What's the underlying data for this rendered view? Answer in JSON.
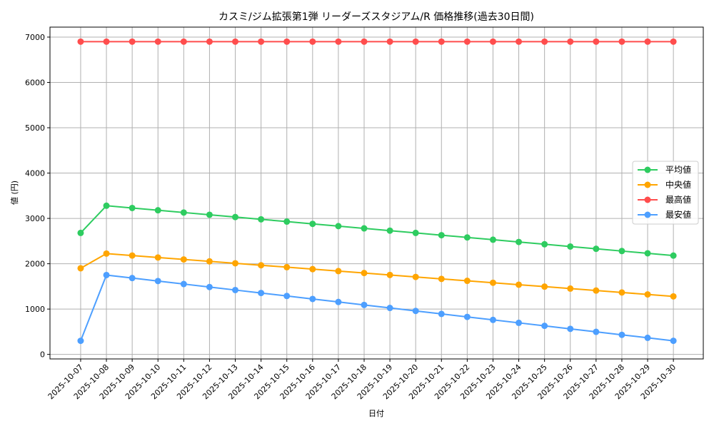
{
  "chart_data": {
    "type": "line",
    "title": "カスミ/ジム拡張第1弾 リーダーズスタジアム/R 価格推移(過去30日間)",
    "xlabel": "日付",
    "ylabel": "値 (円)",
    "ylim": [
      -100,
      7220
    ],
    "yticks": [
      0,
      1000,
      2000,
      3000,
      4000,
      5000,
      6000,
      7000
    ],
    "grid": true,
    "legend_position": "center-right",
    "x": [
      "2025-10-07",
      "2025-10-08",
      "2025-10-09",
      "2025-10-10",
      "2025-10-11",
      "2025-10-12",
      "2025-10-13",
      "2025-10-14",
      "2025-10-15",
      "2025-10-16",
      "2025-10-17",
      "2025-10-18",
      "2025-10-19",
      "2025-10-20",
      "2025-10-21",
      "2025-10-22",
      "2025-10-23",
      "2025-10-24",
      "2025-10-25",
      "2025-10-26",
      "2025-10-27",
      "2025-10-28",
      "2025-10-29",
      "2025-10-30"
    ],
    "series": [
      {
        "name": "平均値",
        "color": "#2ecc60",
        "values": [
          2680,
          3280,
          3230,
          3180,
          3130,
          3080,
          3030,
          2980,
          2930,
          2880,
          2830,
          2780,
          2730,
          2680,
          2630,
          2580,
          2530,
          2480,
          2430,
          2380,
          2330,
          2280,
          2230,
          2180
        ]
      },
      {
        "name": "中央値",
        "color": "#ffa500",
        "values": [
          1900,
          2224,
          2181,
          2138,
          2095,
          2052,
          2010,
          1967,
          1924,
          1881,
          1838,
          1795,
          1752,
          1709,
          1666,
          1623,
          1581,
          1538,
          1495,
          1452,
          1409,
          1366,
          1323,
          1280
        ]
      },
      {
        "name": "最高値",
        "color": "#ff4d4d",
        "values": [
          6900,
          6900,
          6900,
          6900,
          6900,
          6900,
          6900,
          6900,
          6900,
          6900,
          6900,
          6900,
          6900,
          6900,
          6900,
          6900,
          6900,
          6900,
          6900,
          6900,
          6900,
          6900,
          6900,
          6900
        ]
      },
      {
        "name": "最安値",
        "color": "#4d9fff",
        "values": [
          300,
          1750,
          1684,
          1618,
          1552,
          1486,
          1420,
          1355,
          1289,
          1223,
          1157,
          1091,
          1025,
          959,
          893,
          827,
          761,
          696,
          630,
          564,
          498,
          432,
          366,
          300
        ]
      }
    ]
  }
}
